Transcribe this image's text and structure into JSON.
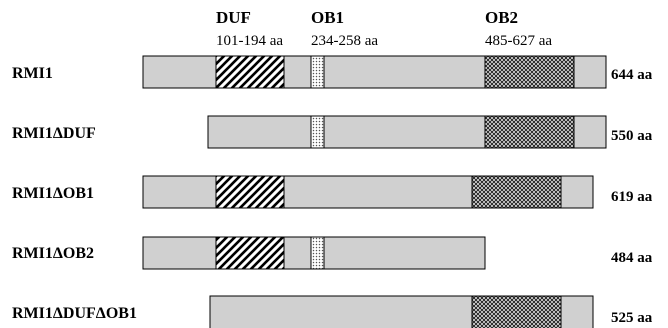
{
  "domains": [
    {
      "name": "DUF",
      "range": "101-194 aa",
      "pattern": "diagonal-hatch"
    },
    {
      "name": "OB1",
      "range": "234-258 aa",
      "pattern": "dots"
    },
    {
      "name": "OB2",
      "range": "485-627 aa",
      "pattern": "crosshatch"
    }
  ],
  "constructs": [
    {
      "name": "RMI1",
      "length": "644 aa"
    },
    {
      "name": "RMI1ΔDUF",
      "length": "550 aa"
    },
    {
      "name": "RMI1ΔOB1",
      "length": "619 aa"
    },
    {
      "name": "RMI1ΔOB2",
      "length": "484 aa"
    },
    {
      "name": "RMI1ΔDUFΔOB1",
      "length": "525 aa"
    }
  ],
  "colors": {
    "bar_fill": "#d0d0d0",
    "outline": "#000000"
  }
}
